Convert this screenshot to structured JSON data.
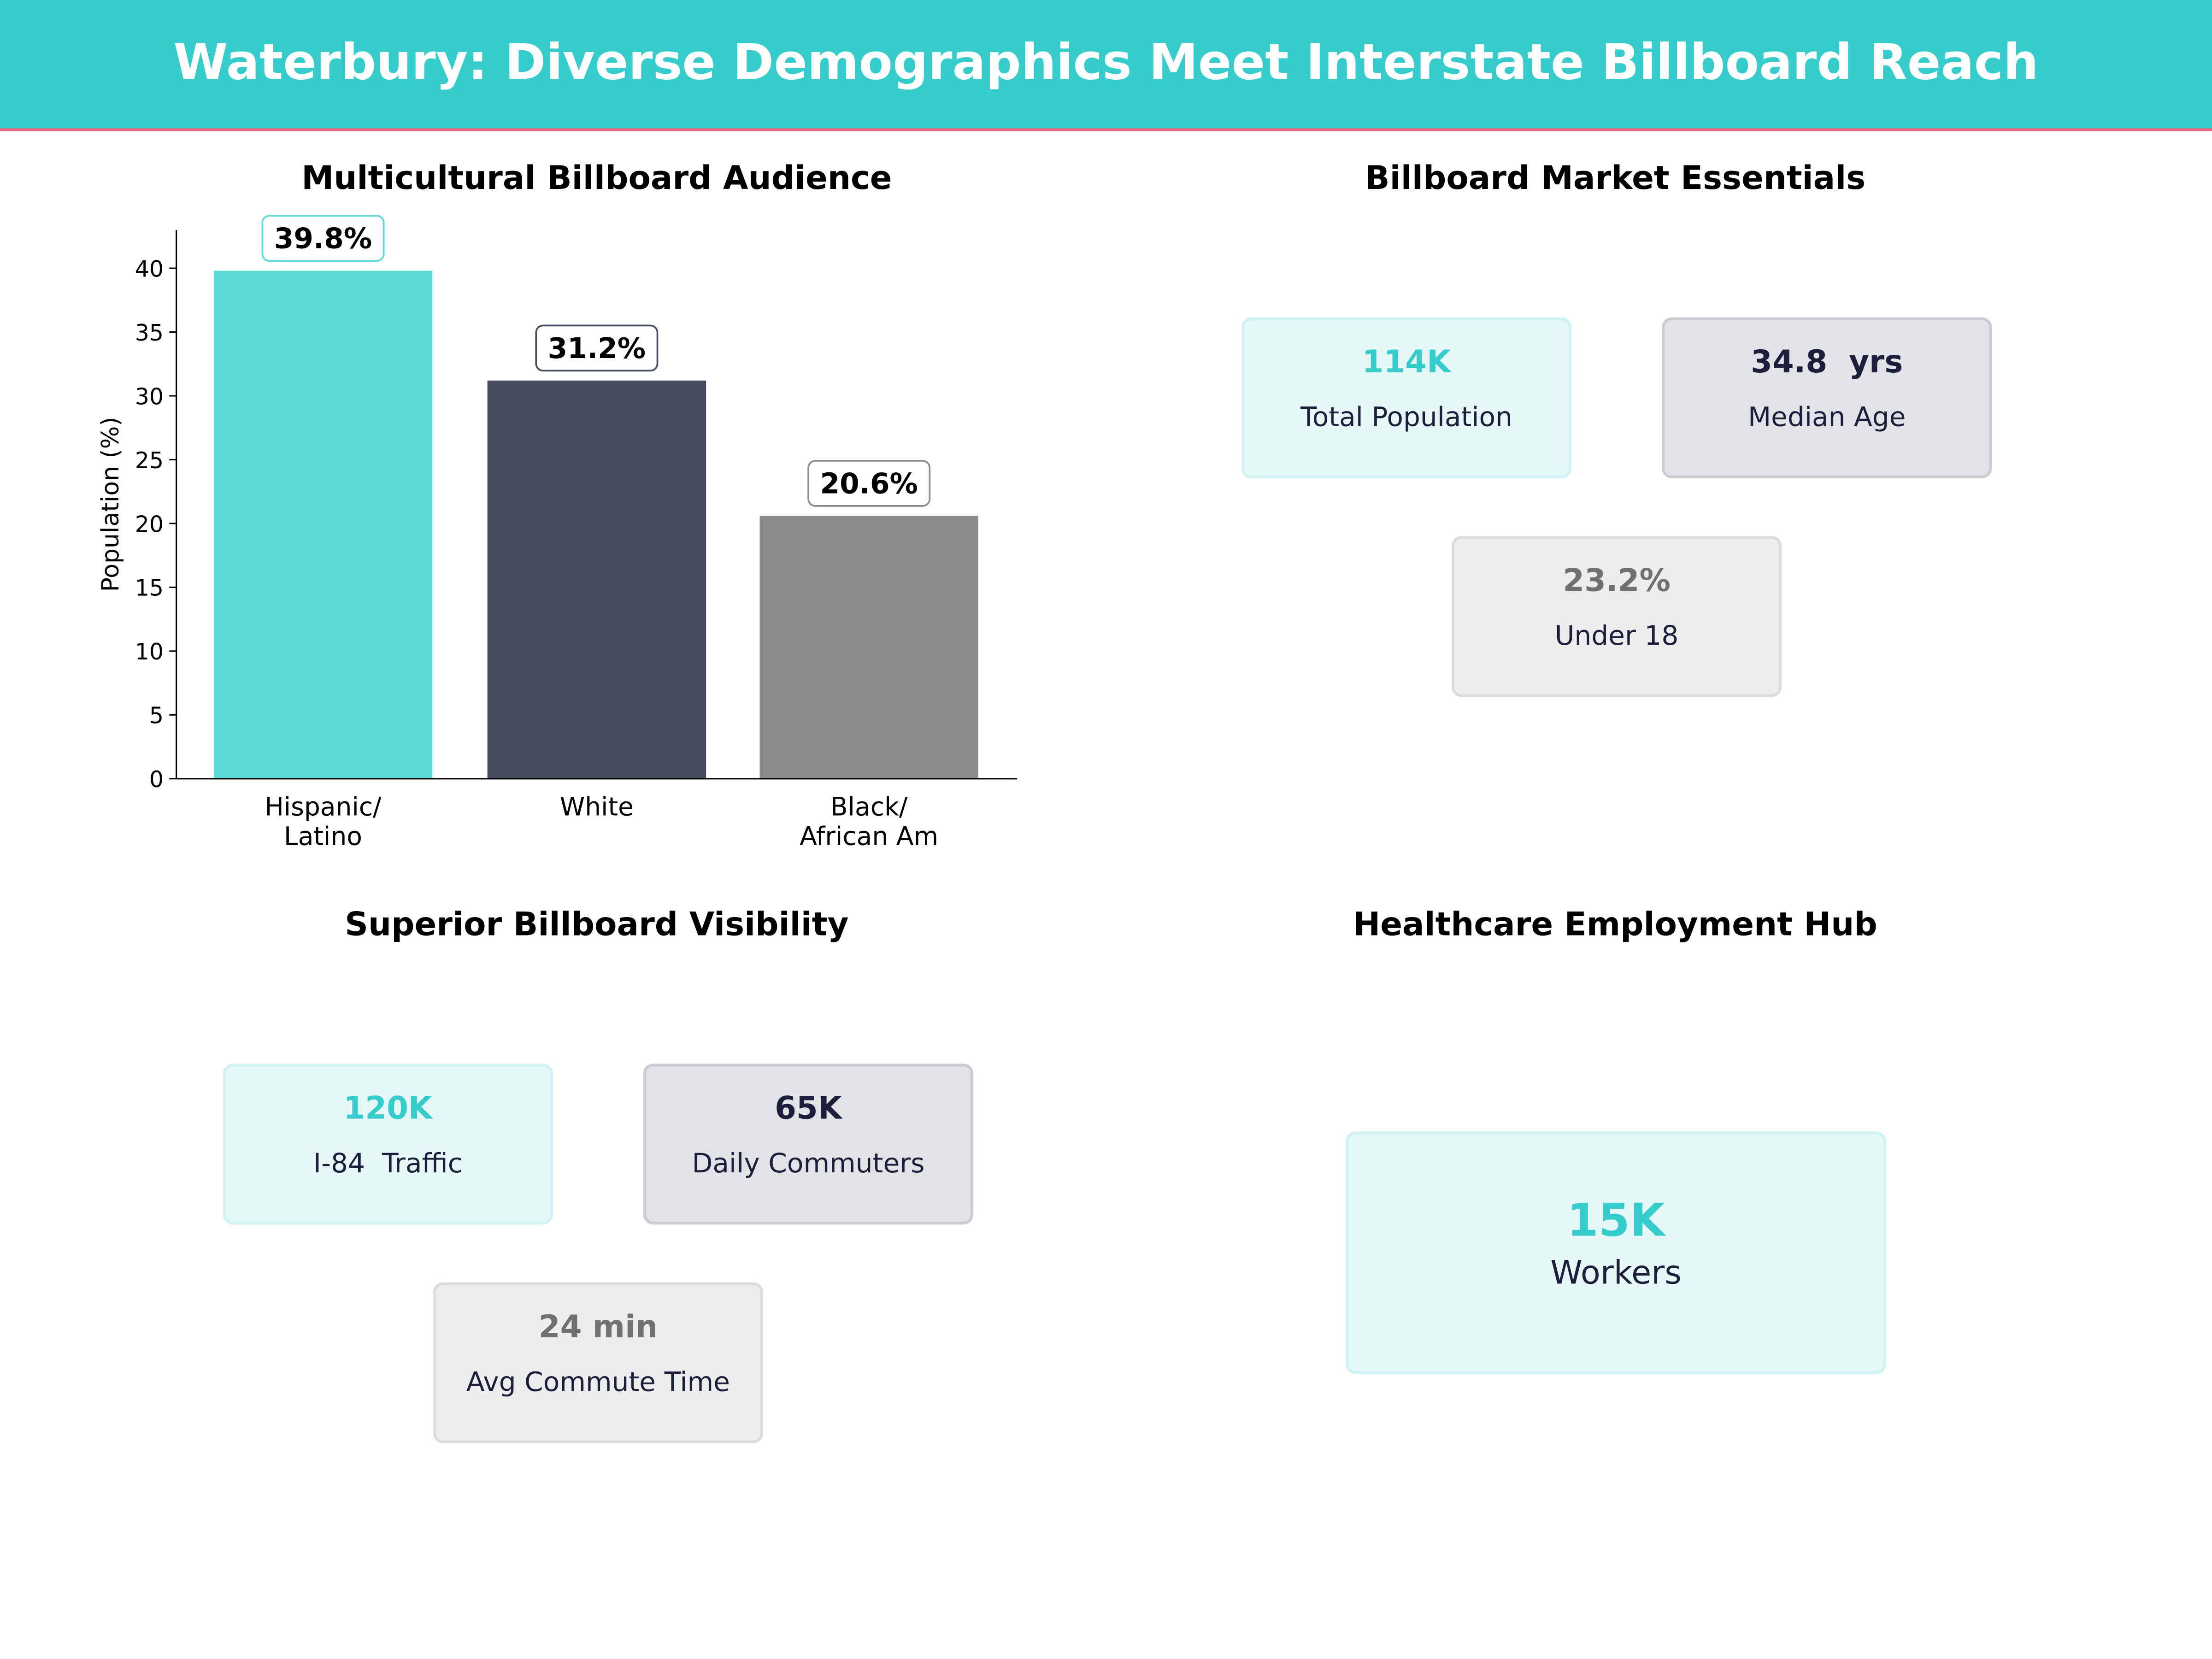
{
  "header": {
    "title": "Waterbury: Diverse Demographics Meet Interstate Billboard Reach"
  },
  "chart_data": {
    "type": "bar",
    "title": "Multicultural Billboard Audience",
    "xlabel": "",
    "ylabel": "Population (%)",
    "categories": [
      "Hispanic/\nLatino",
      "White",
      "Black/\nAfrican Am"
    ],
    "category_lines": [
      [
        "Hispanic/",
        "Latino"
      ],
      [
        "White"
      ],
      [
        "Black/",
        "African Am"
      ]
    ],
    "values": [
      39.8,
      31.2,
      20.6
    ],
    "data_labels": [
      "39.8%",
      "31.2%",
      "20.6%"
    ],
    "colors": [
      "#5DD9D5",
      "#464B60",
      "#8B8B8B"
    ],
    "ylim": [
      0,
      43
    ],
    "yticks": [
      0,
      5,
      10,
      15,
      20,
      25,
      30,
      35,
      40
    ],
    "grid": false
  },
  "market": {
    "title": "Billboard Market Essentials",
    "cards": [
      {
        "value": "114K",
        "label": "Total Population"
      },
      {
        "value": "34.8  yrs",
        "label": "Median Age"
      },
      {
        "value": "23.2%",
        "label": "Under 18"
      }
    ]
  },
  "visibility": {
    "title": "Superior Billboard Visibility",
    "cards": [
      {
        "value": "120K",
        "label": "I-84  Traffic"
      },
      {
        "value": "65K",
        "label": "Daily Commuters"
      },
      {
        "value": "24 min",
        "label": "Avg Commute Time"
      }
    ]
  },
  "healthcare": {
    "title": "Healthcare Employment Hub",
    "card": {
      "value": "15K",
      "label": "Workers"
    }
  },
  "colors": {
    "brand": "#36CCCC",
    "accent_line": "#F0607A",
    "navy": "#1B1F3B"
  }
}
